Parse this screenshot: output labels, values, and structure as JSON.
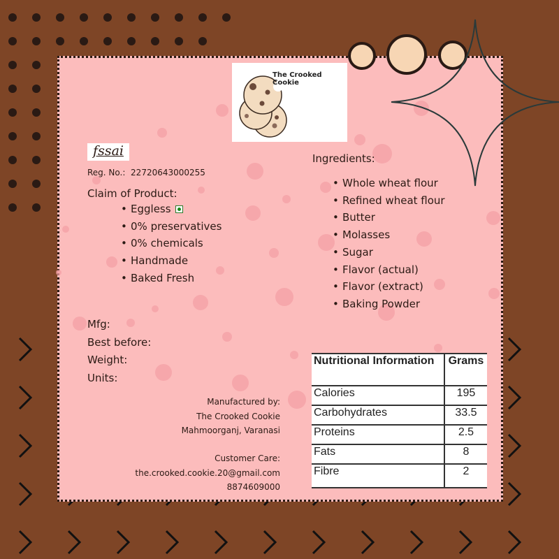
{
  "colors": {
    "background": "#7e4526",
    "panel": "#fcbcbc",
    "accent_dark": "#2a1a14"
  },
  "brand": {
    "name": "The Crooked Cookie",
    "logo_icon": "cookie-icon"
  },
  "fssai": {
    "logo_text": "fssai",
    "reg_label": "Reg. No.:",
    "reg_number": "22720643000255"
  },
  "claims": {
    "title": "Claim of Product:",
    "items": [
      "Eggless",
      "0% preservatives",
      "0% chemicals",
      "Handmade",
      "Baked Fresh"
    ],
    "veg_icon": "veg-mark-icon"
  },
  "ingredients": {
    "title": "Ingredients:",
    "items": [
      "Whole wheat flour",
      "Refined wheat flour",
      "Butter",
      "Molasses",
      "Sugar",
      "Flavor (actual)",
      "Flavor (extract)",
      "Baking Powder"
    ]
  },
  "meta": {
    "mfg": "Mfg:",
    "best_before": "Best before:",
    "weight": "Weight:",
    "units": "Units:"
  },
  "manufacturer": {
    "label": "Manufactured by:",
    "name": "The Crooked Cookie",
    "address": "Mahmoorganj, Varanasi"
  },
  "care": {
    "label": "Customer Care:",
    "email": "the.crooked.cookie.20@gmail.com",
    "phone": "8874609000"
  },
  "nutrition": {
    "header": [
      "Nutritional Information",
      "Grams"
    ],
    "rows": [
      [
        "Calories",
        "195"
      ],
      [
        "Carbohydrates",
        "33.5"
      ],
      [
        "Proteins",
        "2.5"
      ],
      [
        "Fats",
        "8"
      ],
      [
        "Fibre",
        "2"
      ]
    ]
  }
}
